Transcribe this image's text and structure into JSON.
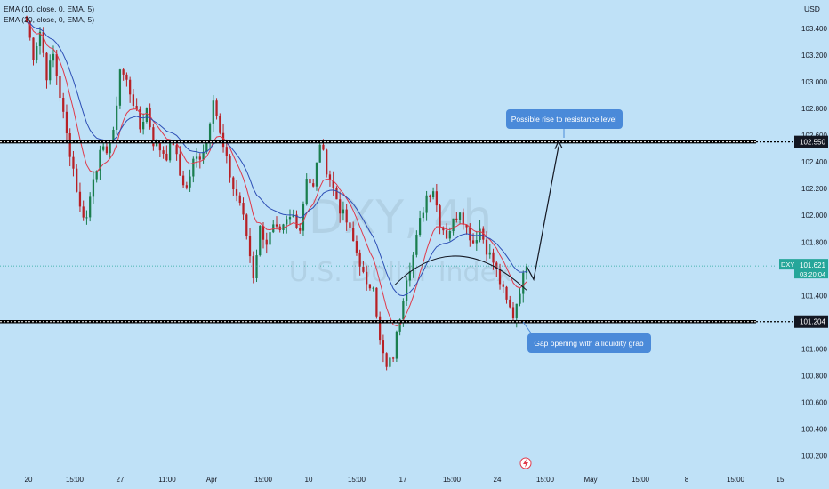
{
  "header": {
    "currency": "USD",
    "indicators": [
      {
        "label": "EMA (10, close, 0, EMA, 5)",
        "color": "#e0394a"
      },
      {
        "label": "EMA (20, close, 0, EMA, 5)",
        "color": "#2d4fb5"
      }
    ]
  },
  "watermark": {
    "ticker": "DXY, 4h",
    "name": "U.S. Dollar Index"
  },
  "chart_data": {
    "type": "candlestick",
    "symbol": "DXY",
    "timeframe": "4h",
    "ylim": [
      100.15,
      103.58
    ],
    "y_ticks": [
      "103.400",
      "103.200",
      "103.000",
      "102.800",
      "102.600",
      "102.400",
      "102.200",
      "102.000",
      "101.800",
      "101.600",
      "101.400",
      "101.200",
      "101.000",
      "100.800",
      "100.600",
      "100.400",
      "100.200"
    ],
    "x_ticks": [
      "20",
      "15:00",
      "27",
      "11:00",
      "Apr",
      "15:00",
      "10",
      "15:00",
      "17",
      "15:00",
      "24",
      "15:00",
      "May",
      "15:00",
      "8",
      "15:00",
      "15"
    ],
    "levels": [
      {
        "label": "102.550",
        "value": 102.55,
        "role": "resistance"
      },
      {
        "label": "101.204",
        "value": 101.204,
        "role": "support"
      }
    ],
    "last_price": {
      "symbol": "DXY",
      "value": "101.621",
      "countdown": "03:20:04",
      "color": "#26a69a"
    },
    "close_path": [
      103.45,
      103.2,
      103.38,
      103.05,
      103.2,
      102.9,
      102.6,
      102.35,
      102.05,
      101.98,
      102.3,
      102.45,
      102.5,
      102.6,
      103.1,
      103.0,
      102.85,
      102.65,
      102.8,
      102.55,
      102.5,
      102.45,
      102.55,
      102.3,
      102.2,
      102.4,
      102.45,
      102.55,
      102.9,
      102.6,
      102.4,
      102.2,
      102.1,
      101.85,
      101.55,
      101.9,
      101.8,
      101.9,
      101.85,
      101.95,
      102.0,
      101.9,
      102.3,
      102.2,
      102.55,
      102.35,
      102.2,
      102.05,
      101.95,
      101.8,
      101.65,
      101.45,
      101.5,
      101.05,
      100.85,
      100.95,
      101.25,
      101.55,
      101.7,
      101.95,
      102.15,
      102.2,
      101.95,
      101.85,
      101.95,
      102.05,
      101.9,
      101.8,
      101.9,
      101.75,
      101.65,
      101.5,
      101.35,
      101.25,
      101.45,
      101.62
    ],
    "ema_10_color": "#e0394a",
    "ema_20_color": "#2d4fb5"
  },
  "annotations": {
    "top_callout": "Possible rise to resistance level",
    "bottom_callout": "Gap opening with a liquidity grab"
  }
}
